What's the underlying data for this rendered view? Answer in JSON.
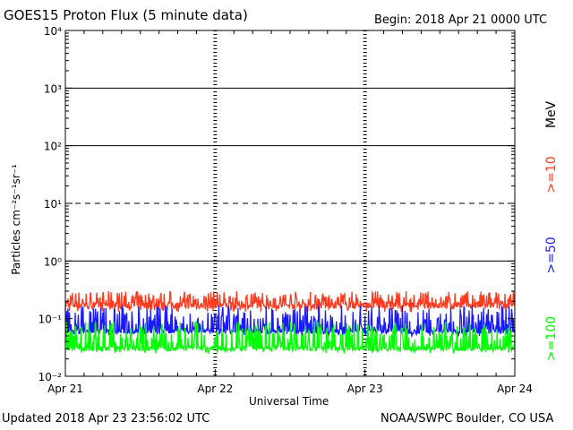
{
  "header": {
    "title": "GOES15 Proton Flux (5 minute data)",
    "begin": "Begin: 2018 Apr 21 0000 UTC"
  },
  "footer": {
    "updated": "Updated 2018 Apr 23 23:56:02 UTC",
    "credit": "NOAA/SWPC Boulder, CO USA"
  },
  "chart_data": {
    "type": "line",
    "title": "GOES15 Proton Flux (5 minute data)",
    "xlabel": "Universal Time",
    "ylabel": "Particles cm⁻²s⁻¹sr⁻¹",
    "yscale": "log",
    "ylim": [
      0.01,
      10000
    ],
    "y_tick_labels": [
      "10⁻²",
      "10⁻¹",
      "10⁰",
      "10¹",
      "10²",
      "10³",
      "10⁴"
    ],
    "x_ticks": [
      "Apr 21",
      "Apr 22",
      "Apr 23",
      "Apr 24"
    ],
    "xlim_days": [
      0,
      3
    ],
    "grid": true,
    "threshold_lines": [
      {
        "value": 10,
        "style": "dashed"
      },
      {
        "value": 1,
        "style": "solid"
      },
      {
        "value": 100,
        "style": "solid"
      },
      {
        "value": 1000,
        "style": "solid"
      }
    ],
    "series": [
      {
        "name": ">=10",
        "color": "#ff3a1f",
        "baseline": 0.17,
        "low": 0.13,
        "high": 0.3
      },
      {
        "name": ">=50",
        "color": "#1a1aff",
        "baseline": 0.06,
        "low": 0.05,
        "high": 0.17
      },
      {
        "name": ">=100",
        "color": "#00ff00",
        "baseline": 0.03,
        "low": 0.025,
        "high": 0.09
      }
    ],
    "legend": {
      "placement": "right-vertical",
      "unit": "MeV"
    }
  }
}
